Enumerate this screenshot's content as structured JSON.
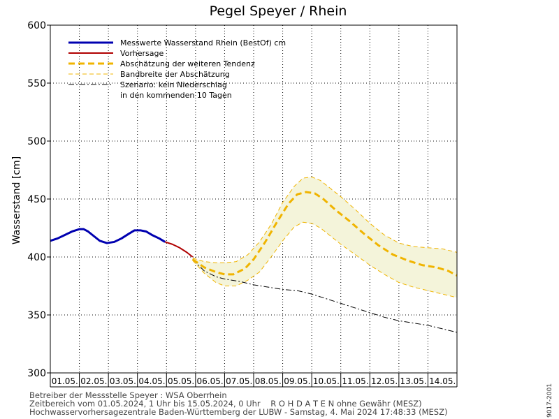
{
  "chart_data": {
    "type": "line",
    "title": "Pegel Speyer / Rhein",
    "ylabel": "Wasserstand [cm]",
    "ylim": [
      300,
      600
    ],
    "yticks": [
      300,
      350,
      400,
      450,
      500,
      550,
      600
    ],
    "xlim_days": [
      0,
      14
    ],
    "categories": [
      "01.05.",
      "02.05.",
      "03.05.",
      "04.05.",
      "05.05.",
      "06.05.",
      "07.05.",
      "08.05.",
      "09.05.",
      "10.05.",
      "11.05.",
      "12.05.",
      "13.05.",
      "14.05."
    ],
    "grid": true,
    "legend_position": "top-left",
    "legend": [
      "Messwerte Wasserstand Rhein (BestOf) cm",
      "Vorhersage",
      "Abschätzung der weiteren Tendenz",
      "Bandbreite der Abschätzung",
      "Szenario: kein Niederschlag",
      "in den kommenden 10 Tagen"
    ],
    "series": [
      {
        "name": "Messwerte Wasserstand Rhein (BestOf) cm",
        "color": "#0000b0",
        "style": "solid-thick",
        "x": [
          0,
          0.25,
          0.5,
          0.75,
          1.0,
          1.15,
          1.3,
          1.5,
          1.7,
          1.95,
          2.2,
          2.45,
          2.7,
          2.9,
          3.1,
          3.3,
          3.5,
          3.75,
          3.95
        ],
        "y": [
          414,
          416,
          419,
          422,
          424,
          424,
          422,
          418,
          414,
          412,
          413,
          416,
          420,
          423,
          423,
          422,
          419,
          416,
          413
        ]
      },
      {
        "name": "Vorhersage",
        "color": "#b00000",
        "style": "solid",
        "x": [
          3.95,
          4.2,
          4.45,
          4.7,
          4.9
        ],
        "y": [
          413,
          411,
          408,
          404,
          400
        ]
      },
      {
        "name": "Abschätzung der weiteren Tendenz",
        "color": "#f0b400",
        "style": "dashed-thick",
        "x": [
          4.9,
          5.3,
          5.7,
          6.0,
          6.3,
          6.7,
          7.0,
          7.4,
          7.8,
          8.2,
          8.5,
          8.8,
          9.1,
          9.4,
          9.8,
          10.3,
          10.8,
          11.3,
          11.8,
          12.3,
          12.8,
          13.3,
          13.7,
          14.0
        ],
        "y": [
          398,
          391,
          387,
          385,
          385,
          390,
          398,
          413,
          430,
          446,
          454,
          456,
          455,
          450,
          441,
          431,
          420,
          410,
          402,
          397,
          393,
          391,
          388,
          384
        ]
      },
      {
        "name": "Bandbreite der Abschätzung (oben)",
        "color": "#f0b400",
        "style": "dashed-thin",
        "x": [
          4.9,
          5.3,
          5.7,
          6.0,
          6.4,
          6.8,
          7.2,
          7.6,
          8.0,
          8.4,
          8.7,
          9.0,
          9.3,
          9.6,
          10.0,
          10.5,
          11.0,
          11.5,
          12.0,
          12.5,
          13.0,
          13.5,
          14.0
        ],
        "y": [
          399,
          396,
          395,
          395,
          396,
          402,
          413,
          428,
          447,
          461,
          468,
          469,
          466,
          460,
          452,
          441,
          429,
          419,
          412,
          409,
          408,
          407,
          404
        ]
      },
      {
        "name": "Bandbreite der Abschätzung (unten)",
        "color": "#f0b400",
        "style": "dashed-thin",
        "x": [
          4.9,
          5.3,
          5.7,
          6.0,
          6.4,
          6.8,
          7.2,
          7.6,
          8.0,
          8.4,
          8.7,
          9.0,
          9.3,
          9.6,
          10.0,
          10.5,
          11.0,
          11.5,
          12.0,
          12.5,
          13.0,
          13.5,
          14.0
        ],
        "y": [
          397,
          386,
          378,
          375,
          375,
          380,
          387,
          400,
          414,
          426,
          430,
          429,
          425,
          419,
          411,
          402,
          393,
          385,
          378,
          374,
          371,
          368,
          365
        ]
      },
      {
        "name": "Szenario: kein Niederschlag",
        "color": "#000000",
        "style": "dashdot",
        "x": [
          4.9,
          5.3,
          5.7,
          6.0,
          6.5,
          7.0,
          7.5,
          8.0,
          8.5,
          9.0,
          9.5,
          10.0,
          10.5,
          11.0,
          11.5,
          12.0,
          12.5,
          13.0,
          13.5,
          14.0
        ],
        "y": [
          398,
          388,
          383,
          381,
          379,
          376,
          374,
          372,
          371,
          368,
          364,
          360,
          356,
          352,
          348,
          345,
          343,
          341,
          338,
          335
        ]
      }
    ]
  },
  "footer": {
    "line1": "Betreiber der Messstelle Speyer : WSA Oberrhein",
    "line2": "Zeitbereich vom 01.05.2024, 1 Uhr bis 15.05.2024, 0 Uhr    R O H D A T E N ohne Gewähr (MESZ)",
    "line3": "Hochwasservorhersagezentrale Baden-Württemberg der LUBW - Samstag, 4. Mai 2024 17:48:33 (MESZ)"
  },
  "side_label": "9017-2001"
}
